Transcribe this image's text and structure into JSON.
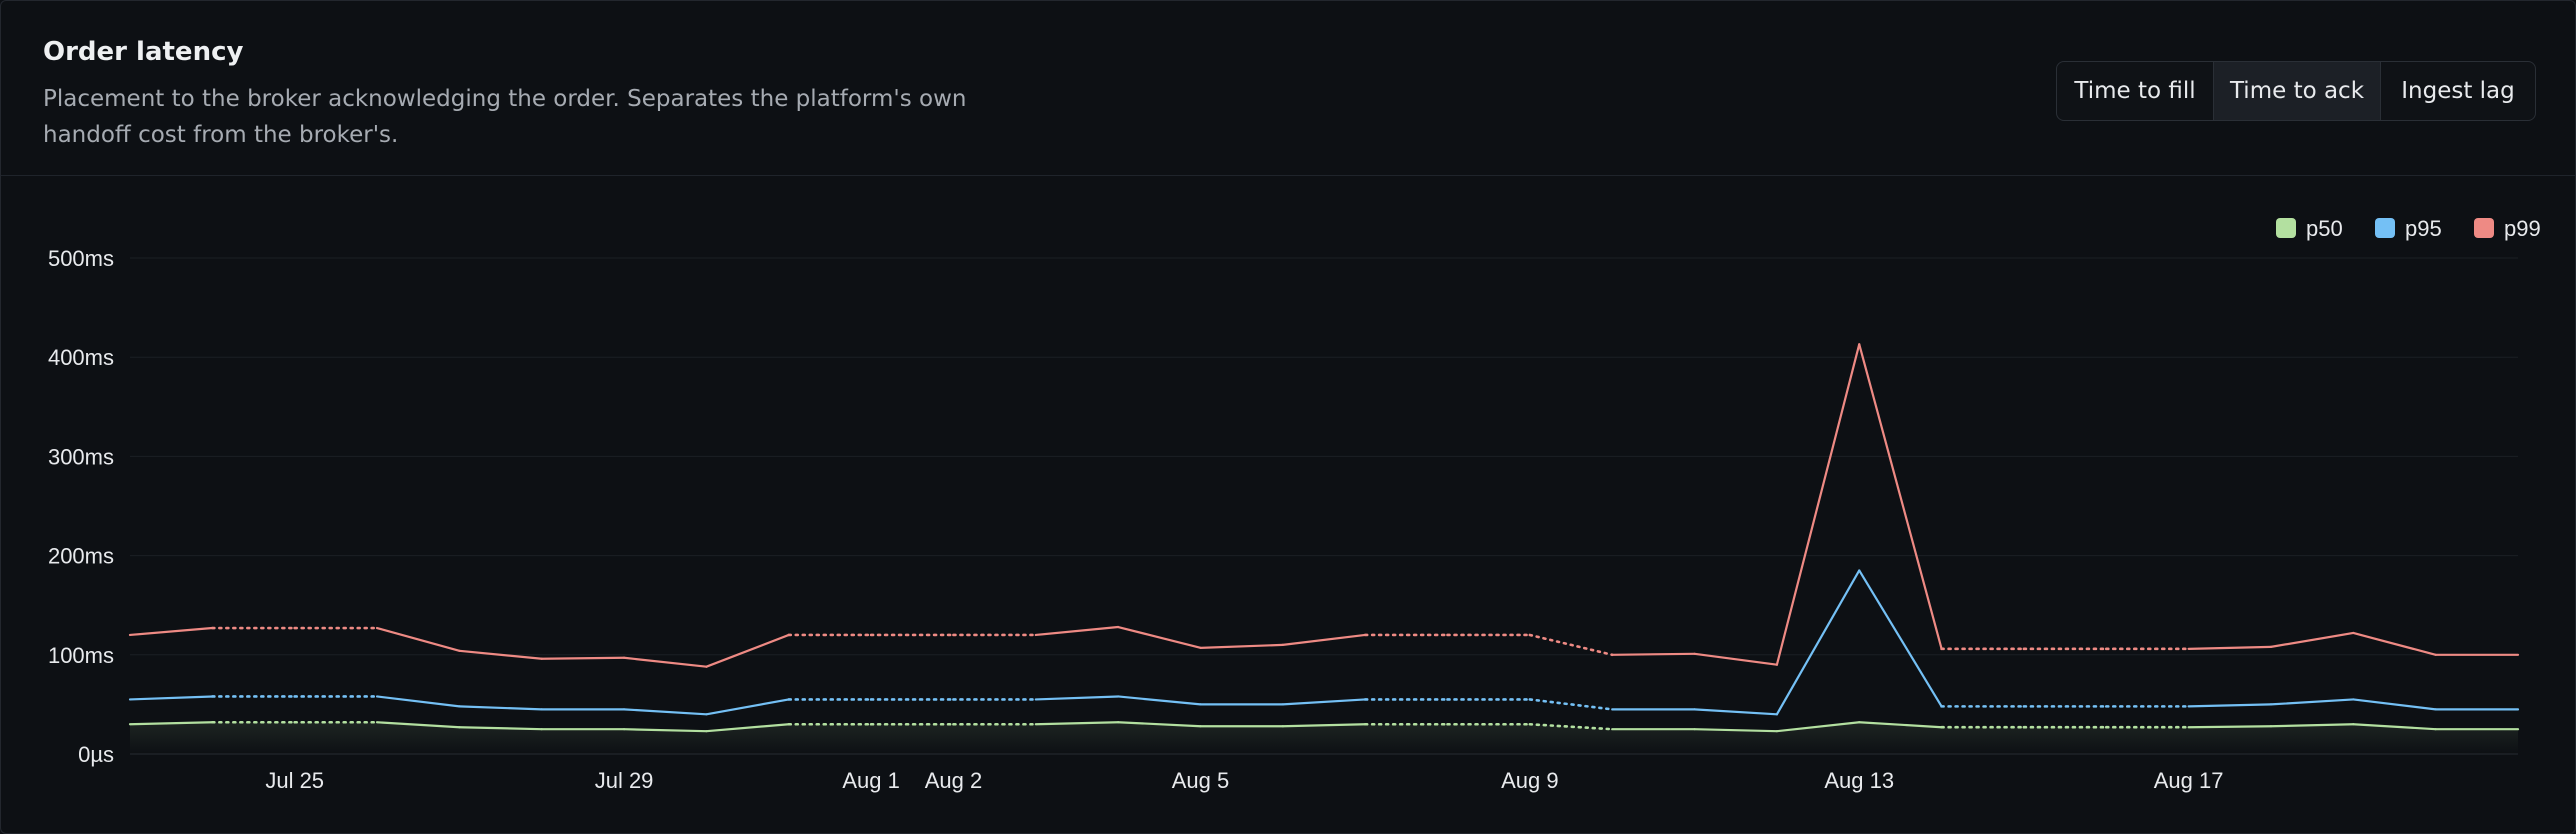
{
  "header": {
    "title": "Order latency",
    "subtitle_line1": "Placement to the broker acknowledging the order. Separates the platform's own",
    "subtitle_line2": "handoff cost from the broker's."
  },
  "tabs": [
    {
      "label": "Time to fill",
      "active": false
    },
    {
      "label": "Time to ack",
      "active": true
    },
    {
      "label": "Ingest lag",
      "active": false
    }
  ],
  "colors": {
    "p50": "#b3e0a0",
    "p95": "#74c0f5",
    "p99": "#ee8a84",
    "grid": "#1b1f25"
  },
  "chart_data": {
    "type": "line",
    "title": "",
    "xlabel": "",
    "ylabel": "",
    "ylim": [
      0,
      500
    ],
    "y_unit": "ms",
    "y_ticks": [
      {
        "value": 0,
        "label": "0µs"
      },
      {
        "value": 100,
        "label": "100ms"
      },
      {
        "value": 200,
        "label": "200ms"
      },
      {
        "value": 300,
        "label": "300ms"
      },
      {
        "value": 400,
        "label": "400ms"
      },
      {
        "value": 500,
        "label": "500ms"
      }
    ],
    "x": [
      "Jul 23",
      "Jul 24",
      "Jul 25",
      "Jul 26",
      "Jul 27",
      "Jul 28",
      "Jul 29",
      "Jul 30",
      "Jul 31",
      "Aug 1",
      "Aug 2",
      "Aug 3",
      "Aug 4",
      "Aug 5",
      "Aug 6",
      "Aug 7",
      "Aug 8",
      "Aug 9",
      "Aug 10",
      "Aug 11",
      "Aug 12",
      "Aug 13",
      "Aug 14",
      "Aug 15",
      "Aug 16",
      "Aug 17",
      "Aug 18",
      "Aug 19",
      "Aug 20",
      "Aug 21"
    ],
    "x_tick_labels": [
      "Jul 25",
      "Jul 29",
      "Aug 1",
      "Aug 2",
      "Aug 5",
      "Aug 9",
      "Aug 13",
      "Aug 17"
    ],
    "legend_position": "top-right",
    "grid": true,
    "series": [
      {
        "name": "p50",
        "values": [
          30,
          32,
          32,
          32,
          27,
          25,
          25,
          23,
          30,
          30,
          30,
          30,
          32,
          28,
          28,
          30,
          30,
          30,
          25,
          25,
          23,
          32,
          27,
          27,
          27,
          27,
          28,
          30,
          25,
          25
        ],
        "interpolated_segments": [
          [
            1,
            3
          ],
          [
            8,
            11
          ],
          [
            15,
            18
          ],
          [
            22,
            25
          ]
        ]
      },
      {
        "name": "p95",
        "values": [
          55,
          58,
          58,
          58,
          48,
          45,
          45,
          40,
          55,
          55,
          55,
          55,
          58,
          50,
          50,
          55,
          55,
          55,
          45,
          45,
          40,
          185,
          48,
          48,
          48,
          48,
          50,
          55,
          45,
          45
        ],
        "interpolated_segments": [
          [
            1,
            3
          ],
          [
            8,
            11
          ],
          [
            15,
            18
          ],
          [
            22,
            25
          ]
        ]
      },
      {
        "name": "p99",
        "values": [
          120,
          127,
          127,
          127,
          104,
          96,
          97,
          88,
          120,
          120,
          120,
          120,
          128,
          107,
          110,
          120,
          120,
          120,
          100,
          101,
          90,
          413,
          106,
          106,
          106,
          106,
          108,
          122,
          100,
          100
        ],
        "interpolated_segments": [
          [
            1,
            3
          ],
          [
            8,
            11
          ],
          [
            15,
            18
          ],
          [
            22,
            25
          ]
        ]
      }
    ]
  }
}
